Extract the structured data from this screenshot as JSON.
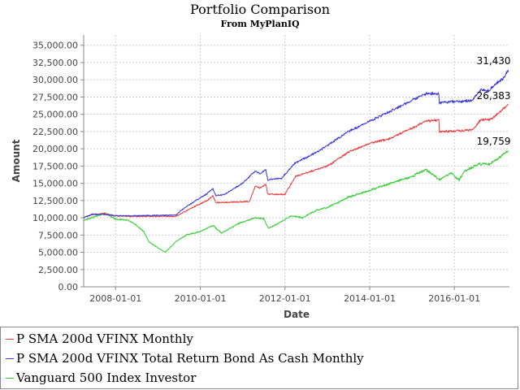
{
  "chart_data": {
    "type": "line",
    "title": "Portfolio Comparison",
    "subtitle": "From MyPlanIQ",
    "xlabel": "Date",
    "ylabel": "Amount",
    "xlim": [
      "2007-04-01",
      "2017-04-20"
    ],
    "ylim": [
      0,
      36500
    ],
    "x_ticks": [
      "2008-01-01",
      "2010-01-01",
      "2012-01-01",
      "2014-01-01",
      "2016-01-01"
    ],
    "y_ticks": [
      "0.00",
      "2,500.00",
      "5,000.00",
      "7,500.00",
      "10,000.00",
      "12,500.00",
      "15,000.00",
      "17,500.00",
      "20,000.00",
      "22,500.00",
      "25,000.00",
      "27,500.00",
      "30,000.00",
      "32,500.00",
      "35,000.00"
    ],
    "grid": true,
    "legend_position": "bottom",
    "series": [
      {
        "name": "P SMA 200d VFINX Monthly",
        "color": "#e8383b",
        "end_label": "26,383",
        "points": [
          [
            "2007-04-01",
            10100
          ],
          [
            "2007-06-15",
            10500
          ],
          [
            "2007-10-01",
            10600
          ],
          [
            "2008-01-01",
            10250
          ],
          [
            "2008-06-01",
            10200
          ],
          [
            "2009-06-01",
            10200
          ],
          [
            "2009-09-01",
            11000
          ],
          [
            "2009-12-01",
            11800
          ],
          [
            "2010-03-01",
            12500
          ],
          [
            "2010-04-20",
            13200
          ],
          [
            "2010-05-15",
            12200
          ],
          [
            "2011-01-01",
            12300
          ],
          [
            "2011-03-01",
            12400
          ],
          [
            "2011-04-20",
            14600
          ],
          [
            "2011-06-01",
            14300
          ],
          [
            "2011-07-20",
            14900
          ],
          [
            "2011-08-05",
            13400
          ],
          [
            "2012-01-01",
            13400
          ],
          [
            "2012-04-01",
            16000
          ],
          [
            "2012-10-01",
            17000
          ],
          [
            "2013-01-01",
            17500
          ],
          [
            "2013-07-01",
            19500
          ],
          [
            "2014-01-01",
            20800
          ],
          [
            "2014-07-01",
            21500
          ],
          [
            "2015-01-01",
            23000
          ],
          [
            "2015-05-01",
            24000
          ],
          [
            "2015-08-20",
            24200
          ],
          [
            "2015-08-25",
            22500
          ],
          [
            "2016-06-01",
            22700
          ],
          [
            "2016-08-15",
            24200
          ],
          [
            "2016-11-01",
            24200
          ],
          [
            "2017-01-01",
            25000
          ],
          [
            "2017-03-01",
            25800
          ],
          [
            "2017-04-10",
            26383
          ]
        ]
      },
      {
        "name": "P SMA 200d VFINX Total Return Bond As Cash Monthly",
        "color": "#3a35d8",
        "end_label": "31,430",
        "points": [
          [
            "2007-04-01",
            10000
          ],
          [
            "2007-06-15",
            10500
          ],
          [
            "2007-10-01",
            10500
          ],
          [
            "2008-01-01",
            10300
          ],
          [
            "2008-06-01",
            10300
          ],
          [
            "2009-06-01",
            10400
          ],
          [
            "2009-09-01",
            11600
          ],
          [
            "2009-12-01",
            12600
          ],
          [
            "2010-03-01",
            13500
          ],
          [
            "2010-04-20",
            14200
          ],
          [
            "2010-05-15",
            13200
          ],
          [
            "2010-08-01",
            13400
          ],
          [
            "2011-01-01",
            15000
          ],
          [
            "2011-04-20",
            16800
          ],
          [
            "2011-06-01",
            16400
          ],
          [
            "2011-07-20",
            17000
          ],
          [
            "2011-08-05",
            15500
          ],
          [
            "2011-12-01",
            15700
          ],
          [
            "2012-04-01",
            18000
          ],
          [
            "2012-10-01",
            19500
          ],
          [
            "2013-01-01",
            20500
          ],
          [
            "2013-07-01",
            22500
          ],
          [
            "2014-01-01",
            24000
          ],
          [
            "2014-07-01",
            25500
          ],
          [
            "2015-01-01",
            27000
          ],
          [
            "2015-05-01",
            28000
          ],
          [
            "2015-08-20",
            28000
          ],
          [
            "2015-08-25",
            26700
          ],
          [
            "2016-06-01",
            27000
          ],
          [
            "2016-08-15",
            28500
          ],
          [
            "2016-11-01",
            28500
          ],
          [
            "2017-01-01",
            29500
          ],
          [
            "2017-03-01",
            30300
          ],
          [
            "2017-04-10",
            31430
          ]
        ]
      },
      {
        "name": "Vanguard 500 Index Investor",
        "color": "#33cc33",
        "end_label": "19,759",
        "points": [
          [
            "2007-04-01",
            9600
          ],
          [
            "2007-10-01",
            10700
          ],
          [
            "2008-01-01",
            9800
          ],
          [
            "2008-04-01",
            9700
          ],
          [
            "2008-06-01",
            9300
          ],
          [
            "2008-09-01",
            8000
          ],
          [
            "2008-10-15",
            6500
          ],
          [
            "2008-12-01",
            6000
          ],
          [
            "2009-03-05",
            5000
          ],
          [
            "2009-06-01",
            6500
          ],
          [
            "2009-09-01",
            7500
          ],
          [
            "2010-01-01",
            8000
          ],
          [
            "2010-04-20",
            8900
          ],
          [
            "2010-07-01",
            7800
          ],
          [
            "2010-12-01",
            9200
          ],
          [
            "2011-04-20",
            10000
          ],
          [
            "2011-07-01",
            9900
          ],
          [
            "2011-08-10",
            8500
          ],
          [
            "2011-10-01",
            8900
          ],
          [
            "2012-03-01",
            10300
          ],
          [
            "2012-06-01",
            10000
          ],
          [
            "2012-09-15",
            11000
          ],
          [
            "2013-01-01",
            11500
          ],
          [
            "2013-07-01",
            13000
          ],
          [
            "2014-01-01",
            14000
          ],
          [
            "2014-07-01",
            15000
          ],
          [
            "2015-01-01",
            16000
          ],
          [
            "2015-05-01",
            17000
          ],
          [
            "2015-08-24",
            15500
          ],
          [
            "2015-12-01",
            16500
          ],
          [
            "2016-02-11",
            15500
          ],
          [
            "2016-04-01",
            16800
          ],
          [
            "2016-08-01",
            17800
          ],
          [
            "2016-11-01",
            17800
          ],
          [
            "2017-01-01",
            18500
          ],
          [
            "2017-03-01",
            19200
          ],
          [
            "2017-04-10",
            19759
          ]
        ]
      }
    ]
  }
}
